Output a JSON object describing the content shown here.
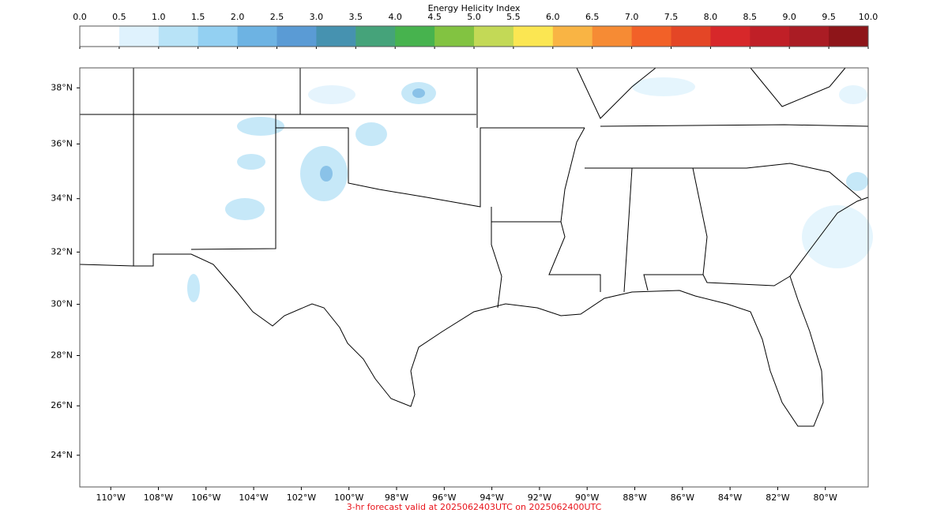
{
  "colorbar": {
    "title": "Energy Helicity Index",
    "ticks": [
      {
        "value": 0,
        "label": "0.0"
      },
      {
        "value": 0.5,
        "label": "0.5"
      },
      {
        "value": 1,
        "label": "1.0"
      },
      {
        "value": 1.5,
        "label": "1.5"
      },
      {
        "value": 2,
        "label": "2.0"
      },
      {
        "value": 2.5,
        "label": "2.5"
      },
      {
        "value": 3,
        "label": "3.0"
      },
      {
        "value": 3.5,
        "label": "3.5"
      },
      {
        "value": 4,
        "label": "4.0"
      },
      {
        "value": 4.5,
        "label": "4.5"
      },
      {
        "value": 5,
        "label": "5.0"
      },
      {
        "value": 5.5,
        "label": "5.5"
      },
      {
        "value": 6,
        "label": "6.0"
      },
      {
        "value": 6.5,
        "label": "6.5"
      },
      {
        "value": 7,
        "label": "7.0"
      },
      {
        "value": 7.5,
        "label": "7.5"
      },
      {
        "value": 8,
        "label": "8.0"
      },
      {
        "value": 8.5,
        "label": "8.5"
      },
      {
        "value": 9,
        "label": "9.0"
      },
      {
        "value": 9.5,
        "label": "9.5"
      },
      {
        "value": 10,
        "label": "10.0"
      }
    ],
    "colors": [
      "#ffffff",
      "#dff2fd",
      "#b8e3f7",
      "#93d0f2",
      "#6db3e3",
      "#5a9bd5",
      "#4692b0",
      "#45a37a",
      "#47b34e",
      "#82c341",
      "#c3d956",
      "#fbe652",
      "#f9b444",
      "#f68b34",
      "#f26128",
      "#e44626",
      "#d7282a",
      "#c01f27",
      "#aa1c24",
      "#8e1519"
    ]
  },
  "map": {
    "xlim": [
      -111.3,
      -78.2
    ],
    "ylim": [
      22.7,
      38.7
    ],
    "yticks": [
      {
        "value": 38,
        "label": "38°N"
      },
      {
        "value": 36,
        "label": "36°N"
      },
      {
        "value": 34,
        "label": "34°N"
      },
      {
        "value": 32,
        "label": "32°N"
      },
      {
        "value": 30,
        "label": "30°N"
      },
      {
        "value": 28,
        "label": "28°N"
      },
      {
        "value": 26,
        "label": "26°N"
      },
      {
        "value": 24,
        "label": "24°N"
      }
    ],
    "xticks": [
      {
        "value": -110,
        "label": "110°W"
      },
      {
        "value": -108,
        "label": "108°W"
      },
      {
        "value": -106,
        "label": "106°W"
      },
      {
        "value": -104,
        "label": "104°W"
      },
      {
        "value": -102,
        "label": "102°W"
      },
      {
        "value": -100,
        "label": "100°W"
      },
      {
        "value": -98,
        "label": "98°W"
      },
      {
        "value": -96,
        "label": "96°W"
      },
      {
        "value": -94,
        "label": "94°W"
      },
      {
        "value": -92,
        "label": "92°W"
      },
      {
        "value": -90,
        "label": "90°W"
      },
      {
        "value": -88,
        "label": "88°W"
      },
      {
        "value": -86,
        "label": "86°W"
      },
      {
        "value": -84,
        "label": "84°W"
      },
      {
        "value": -82,
        "label": "82°W"
      },
      {
        "value": -80,
        "label": "80°W"
      }
    ]
  },
  "footer": "3-hr forecast valid at 2025062403UTC on 2025062400UTC"
}
